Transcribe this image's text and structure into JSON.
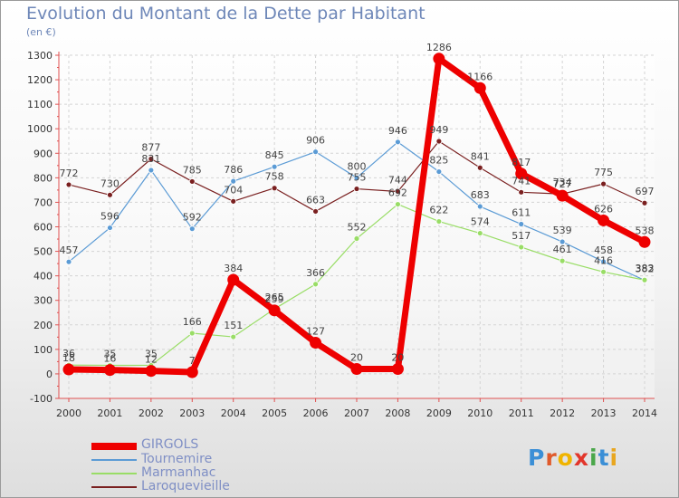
{
  "title": "Evolution du Montant de la Dette par Habitant",
  "subtitle": "(en €)",
  "logo": {
    "text": "Proxiti",
    "letter_colors": [
      "#3b8fd6",
      "#e05a2b",
      "#f0b400",
      "#e2362b",
      "#4aa74a",
      "#3b8fd6",
      "#e8a620"
    ]
  },
  "chart_data": {
    "type": "line",
    "x": [
      "2000",
      "2001",
      "2002",
      "2003",
      "2004",
      "2005",
      "2006",
      "2007",
      "2008",
      "2009",
      "2010",
      "2011",
      "2012",
      "2013",
      "2014"
    ],
    "ylim": [
      -100,
      1300
    ],
    "yticks": [
      -100,
      0,
      100,
      200,
      300,
      400,
      500,
      600,
      700,
      800,
      900,
      1000,
      1100,
      1200,
      1300
    ],
    "grid": true,
    "legend_position": "bottom-left",
    "series": [
      {
        "name": "GIRGOLS",
        "color": "#ee0000",
        "width": 7,
        "marker_r": 6.5,
        "values": [
          18,
          16,
          12,
          7,
          384,
          259,
          127,
          20,
          20,
          1286,
          1166,
          817,
          727,
          626,
          538
        ],
        "labels": [
          "18",
          "16",
          "12",
          "7",
          "384",
          "259",
          "127",
          "20",
          "20",
          "1286",
          "1166",
          "817",
          "727",
          "626",
          "538"
        ]
      },
      {
        "name": "Tournemire",
        "color": "#5b9bd5",
        "width": 1.2,
        "marker_r": 3,
        "values": [
          457,
          596,
          831,
          592,
          786,
          845,
          906,
          800,
          946,
          825,
          683,
          611,
          539,
          458,
          382
        ],
        "labels": [
          "457",
          "596",
          "831",
          "592",
          "786",
          "845",
          "906",
          "800",
          "946",
          "825",
          "683",
          "611",
          "539",
          "458",
          "382"
        ]
      },
      {
        "name": "Marmanhac",
        "color": "#99dd66",
        "width": 1.2,
        "marker_r": 3,
        "values": [
          36,
          35,
          35,
          166,
          151,
          265,
          366,
          552,
          692,
          622,
          574,
          517,
          461,
          416,
          383
        ],
        "labels": [
          "36",
          "35",
          "35",
          "166",
          "151",
          "265",
          "366",
          "552",
          "692",
          "622",
          "574",
          "517",
          "461",
          "416",
          "383"
        ]
      },
      {
        "name": "Laroquevieille",
        "color": "#7a2020",
        "width": 1.2,
        "marker_r": 3,
        "values": [
          772,
          730,
          877,
          785,
          704,
          758,
          663,
          755,
          744,
          949,
          841,
          741,
          734,
          775,
          697
        ],
        "labels": [
          "772",
          "730",
          "877",
          "785",
          "704",
          "758",
          "663",
          "755",
          "744",
          "949",
          "841",
          "741",
          "734",
          "775",
          "697"
        ]
      }
    ]
  }
}
